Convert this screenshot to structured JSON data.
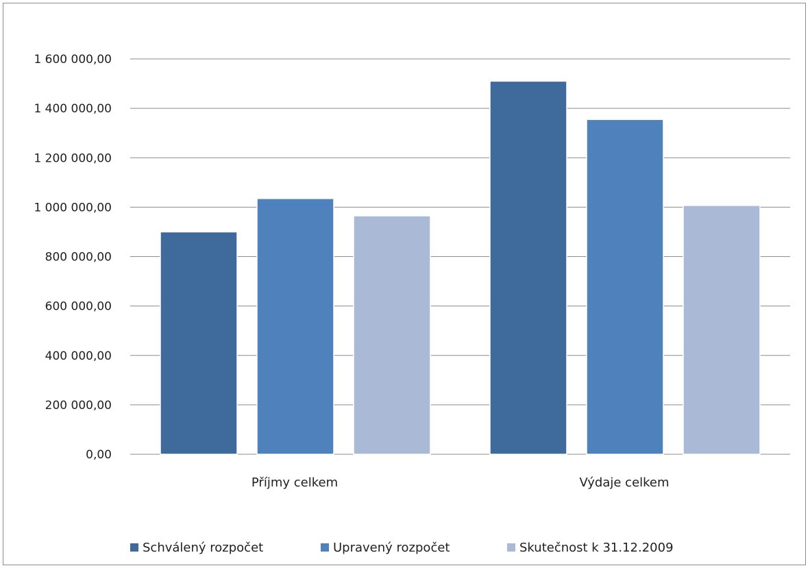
{
  "chart_data": {
    "type": "bar",
    "categories": [
      "Příjmy celkem",
      "Výdaje celkem"
    ],
    "series": [
      {
        "name": "Schválený rozpočet",
        "values": [
          900000,
          1510000
        ],
        "color": "#3F6A9C"
      },
      {
        "name": "Upravený rozpočet",
        "values": [
          1035000,
          1355000
        ],
        "color": "#4F81BD"
      },
      {
        "name": "Skutečnost k 31.12.2009",
        "values": [
          965000,
          1007000
        ],
        "color": "#A9B9D6"
      }
    ],
    "ylim": [
      0,
      1600000
    ],
    "y_ticks": [
      {
        "value": 0,
        "label": "0,00"
      },
      {
        "value": 200000,
        "label": "200 000,00"
      },
      {
        "value": 400000,
        "label": "400 000,00"
      },
      {
        "value": 600000,
        "label": "600 000,00"
      },
      {
        "value": 800000,
        "label": "800 000,00"
      },
      {
        "value": 1000000,
        "label": "1 000 000,00"
      },
      {
        "value": 1200000,
        "label": "1 200 000,00"
      },
      {
        "value": 1400000,
        "label": "1 400 000,00"
      },
      {
        "value": 1600000,
        "label": "1 600 000,00"
      }
    ],
    "grid": true,
    "legend_position": "bottom",
    "gridline_color": "#8C8C8C"
  }
}
